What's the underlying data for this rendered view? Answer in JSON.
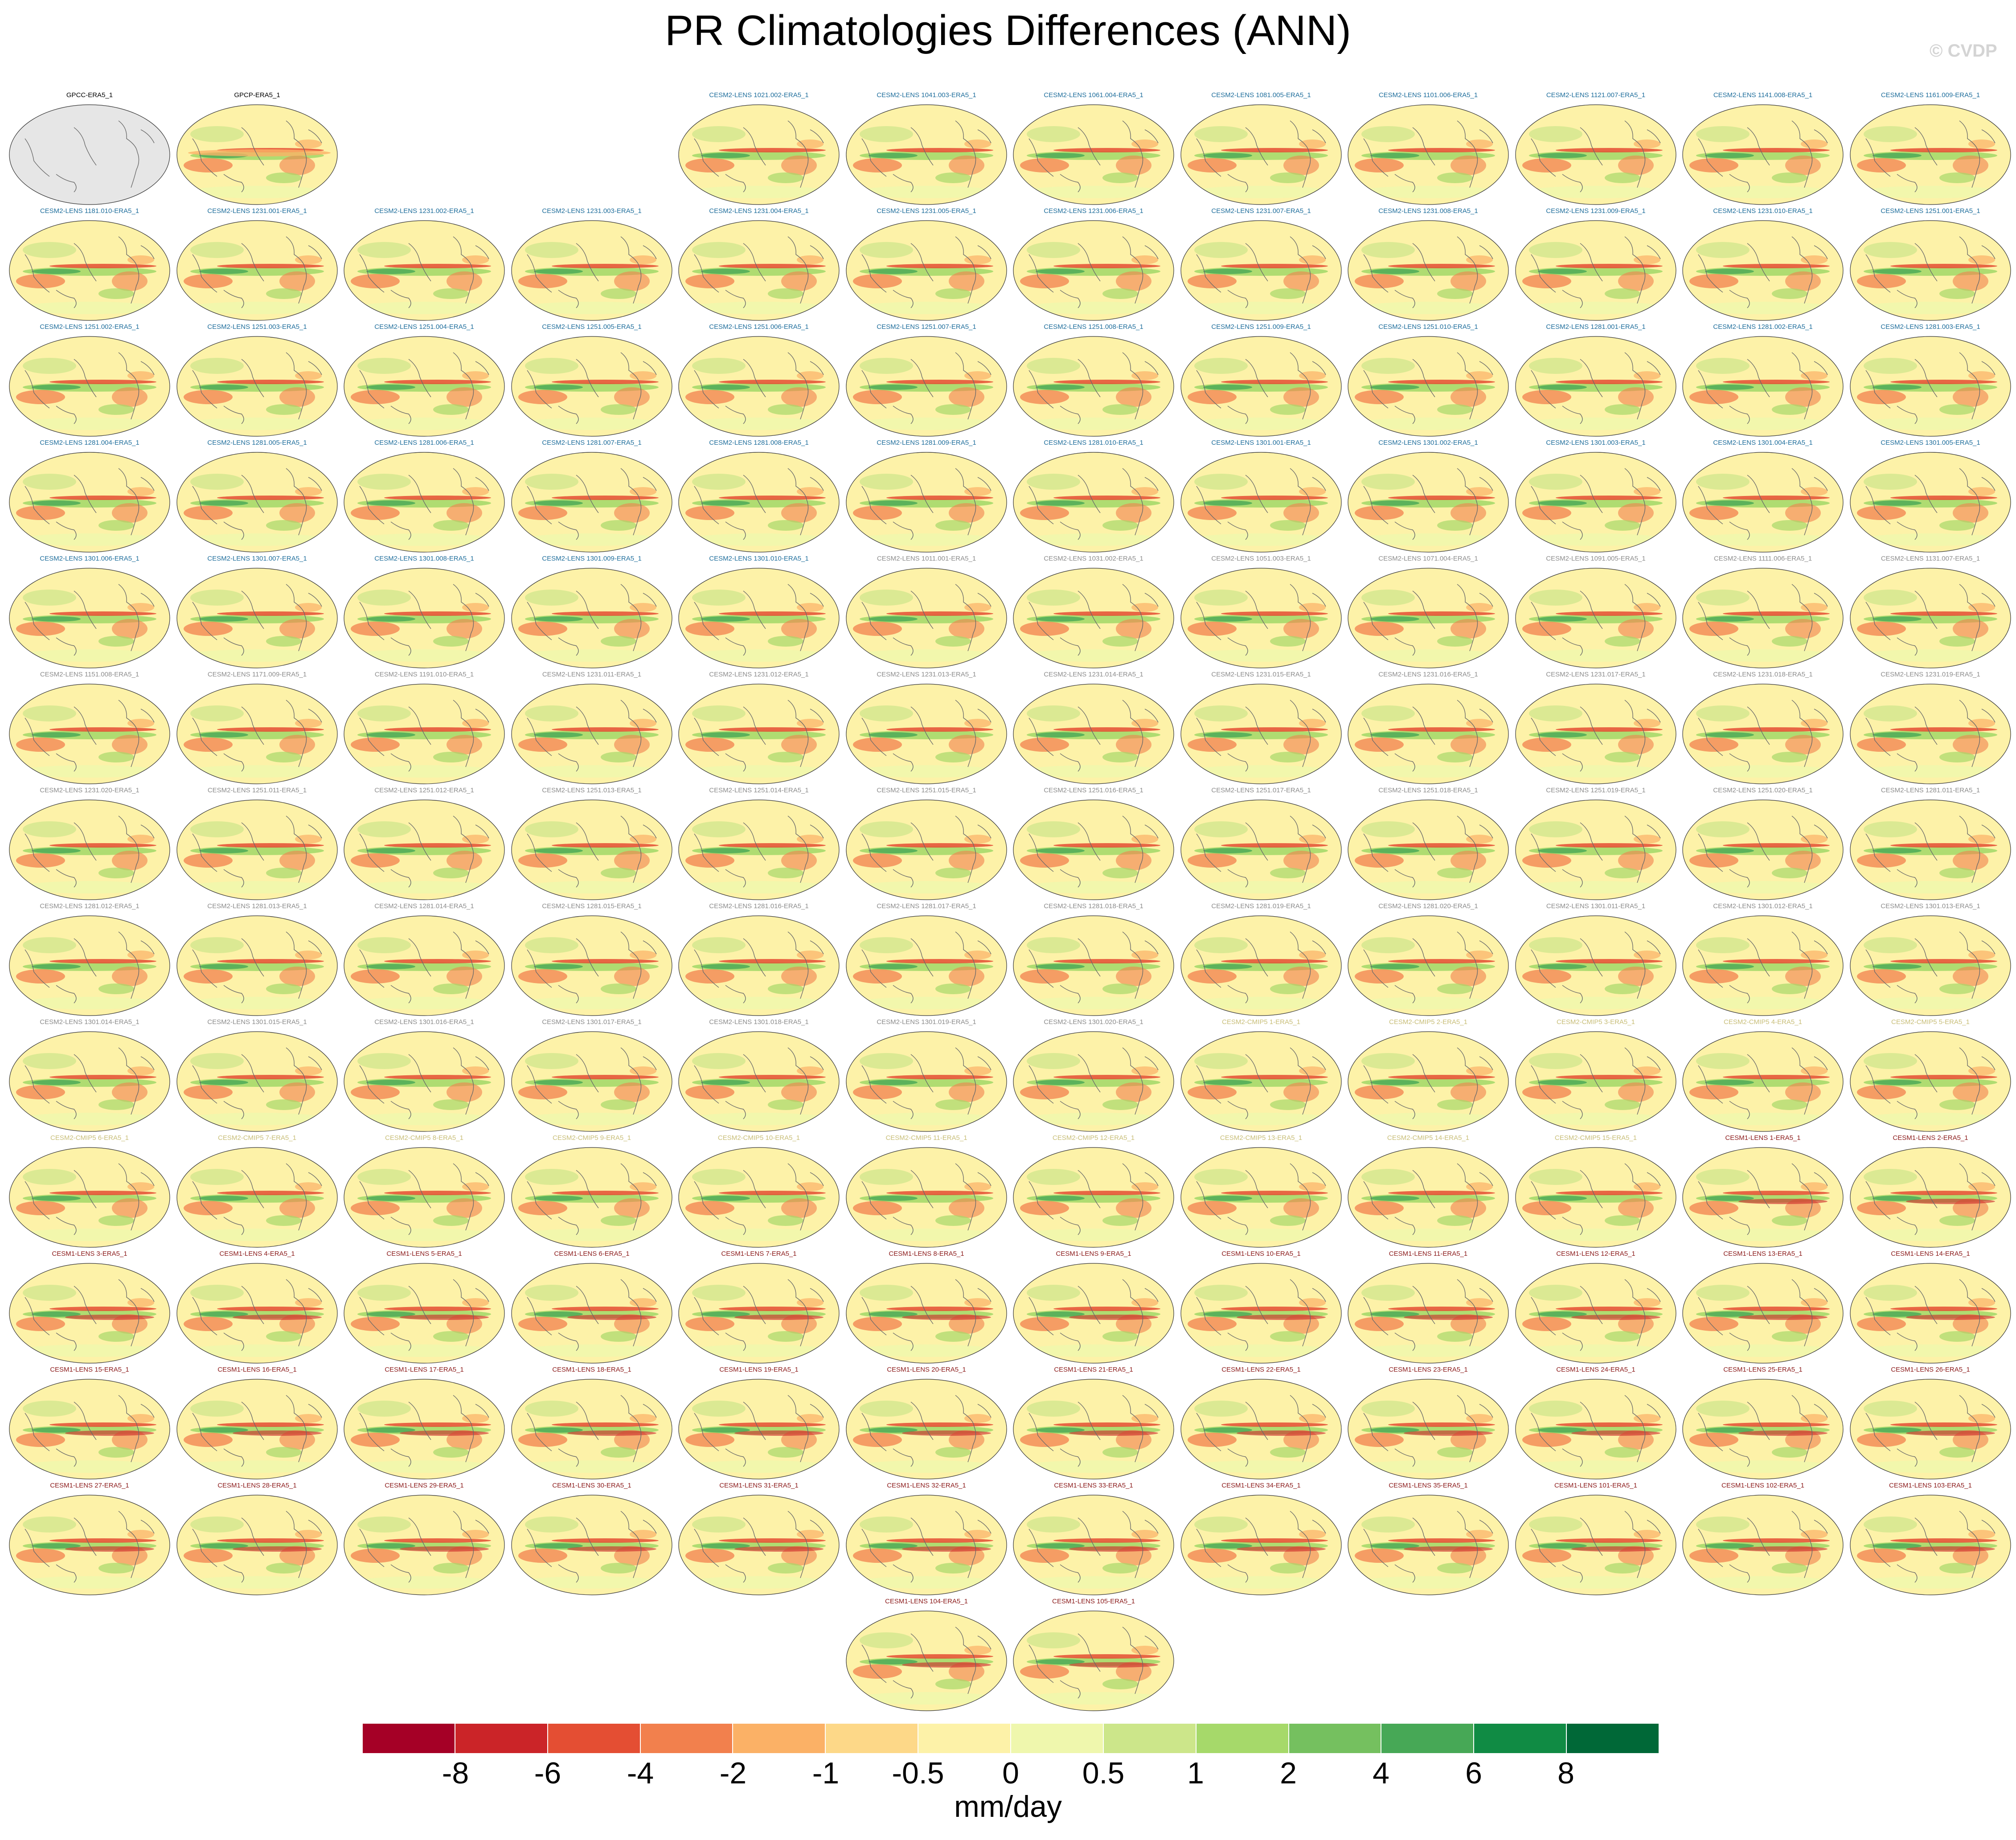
{
  "chart_data": {
    "type": "heatmap",
    "title": "PR Climatologies Differences (ANN)",
    "watermark": "© CVDP",
    "units": "mm/day",
    "colorbar": {
      "ticks": [
        "-8",
        "-6",
        "-4",
        "-2",
        "-1",
        "-0.5",
        "0",
        "0.5",
        "1",
        "2",
        "4",
        "6",
        "8"
      ],
      "colors": [
        "#a50026",
        "#cb2428",
        "#e44e33",
        "#f2804d",
        "#fbb166",
        "#fdd888",
        "#fdf2a8",
        "#eff7ad",
        "#cce68a",
        "#a6d96a",
        "#75c05f",
        "#47a856",
        "#108b44",
        "#006837"
      ]
    },
    "rows": [
      [
        {
          "t": "GPCC-ERA5_1",
          "k": "obs"
        },
        {
          "t": "GPCP-ERA5_1",
          "k": "obs"
        },
        null,
        null,
        {
          "t": "CESM2-LENS 1021.002-ERA5_1",
          "k": "c2"
        },
        {
          "t": "CESM2-LENS 1041.003-ERA5_1",
          "k": "c2"
        },
        {
          "t": "CESM2-LENS 1061.004-ERA5_1",
          "k": "c2"
        },
        {
          "t": "CESM2-LENS 1081.005-ERA5_1",
          "k": "c2"
        },
        {
          "t": "CESM2-LENS 1101.006-ERA5_1",
          "k": "c2"
        },
        {
          "t": "CESM2-LENS 1121.007-ERA5_1",
          "k": "c2"
        },
        {
          "t": "CESM2-LENS 1141.008-ERA5_1",
          "k": "c2"
        },
        {
          "t": "CESM2-LENS 1161.009-ERA5_1",
          "k": "c2"
        }
      ],
      [
        {
          "t": "CESM2-LENS 1181.010-ERA5_1",
          "k": "c2"
        },
        {
          "t": "CESM2-LENS 1231.001-ERA5_1",
          "k": "c2"
        },
        {
          "t": "CESM2-LENS 1231.002-ERA5_1",
          "k": "c2"
        },
        {
          "t": "CESM2-LENS 1231.003-ERA5_1",
          "k": "c2"
        },
        {
          "t": "CESM2-LENS 1231.004-ERA5_1",
          "k": "c2"
        },
        {
          "t": "CESM2-LENS 1231.005-ERA5_1",
          "k": "c2"
        },
        {
          "t": "CESM2-LENS 1231.006-ERA5_1",
          "k": "c2"
        },
        {
          "t": "CESM2-LENS 1231.007-ERA5_1",
          "k": "c2"
        },
        {
          "t": "CESM2-LENS 1231.008-ERA5_1",
          "k": "c2"
        },
        {
          "t": "CESM2-LENS 1231.009-ERA5_1",
          "k": "c2"
        },
        {
          "t": "CESM2-LENS 1231.010-ERA5_1",
          "k": "c2"
        },
        {
          "t": "CESM2-LENS 1251.001-ERA5_1",
          "k": "c2"
        }
      ],
      [
        {
          "t": "CESM2-LENS 1251.002-ERA5_1",
          "k": "c2"
        },
        {
          "t": "CESM2-LENS 1251.003-ERA5_1",
          "k": "c2"
        },
        {
          "t": "CESM2-LENS 1251.004-ERA5_1",
          "k": "c2"
        },
        {
          "t": "CESM2-LENS 1251.005-ERA5_1",
          "k": "c2"
        },
        {
          "t": "CESM2-LENS 1251.006-ERA5_1",
          "k": "c2"
        },
        {
          "t": "CESM2-LENS 1251.007-ERA5_1",
          "k": "c2"
        },
        {
          "t": "CESM2-LENS 1251.008-ERA5_1",
          "k": "c2"
        },
        {
          "t": "CESM2-LENS 1251.009-ERA5_1",
          "k": "c2"
        },
        {
          "t": "CESM2-LENS 1251.010-ERA5_1",
          "k": "c2"
        },
        {
          "t": "CESM2-LENS 1281.001-ERA5_1",
          "k": "c2"
        },
        {
          "t": "CESM2-LENS 1281.002-ERA5_1",
          "k": "c2"
        },
        {
          "t": "CESM2-LENS 1281.003-ERA5_1",
          "k": "c2"
        }
      ],
      [
        {
          "t": "CESM2-LENS 1281.004-ERA5_1",
          "k": "c2"
        },
        {
          "t": "CESM2-LENS 1281.005-ERA5_1",
          "k": "c2"
        },
        {
          "t": "CESM2-LENS 1281.006-ERA5_1",
          "k": "c2"
        },
        {
          "t": "CESM2-LENS 1281.007-ERA5_1",
          "k": "c2"
        },
        {
          "t": "CESM2-LENS 1281.008-ERA5_1",
          "k": "c2"
        },
        {
          "t": "CESM2-LENS 1281.009-ERA5_1",
          "k": "c2"
        },
        {
          "t": "CESM2-LENS 1281.010-ERA5_1",
          "k": "c2"
        },
        {
          "t": "CESM2-LENS 1301.001-ERA5_1",
          "k": "c2"
        },
        {
          "t": "CESM2-LENS 1301.002-ERA5_1",
          "k": "c2"
        },
        {
          "t": "CESM2-LENS 1301.003-ERA5_1",
          "k": "c2"
        },
        {
          "t": "CESM2-LENS 1301.004-ERA5_1",
          "k": "c2"
        },
        {
          "t": "CESM2-LENS 1301.005-ERA5_1",
          "k": "c2"
        }
      ],
      [
        {
          "t": "CESM2-LENS 1301.006-ERA5_1",
          "k": "c2"
        },
        {
          "t": "CESM2-LENS 1301.007-ERA5_1",
          "k": "c2"
        },
        {
          "t": "CESM2-LENS 1301.008-ERA5_1",
          "k": "c2"
        },
        {
          "t": "CESM2-LENS 1301.009-ERA5_1",
          "k": "c2"
        },
        {
          "t": "CESM2-LENS 1301.010-ERA5_1",
          "k": "c2"
        },
        {
          "t": "CESM2-LENS 1011.001-ERA5_1",
          "k": "c2g"
        },
        {
          "t": "CESM2-LENS 1031.002-ERA5_1",
          "k": "c2g"
        },
        {
          "t": "CESM2-LENS 1051.003-ERA5_1",
          "k": "c2g"
        },
        {
          "t": "CESM2-LENS 1071.004-ERA5_1",
          "k": "c2g"
        },
        {
          "t": "CESM2-LENS 1091.005-ERA5_1",
          "k": "c2g"
        },
        {
          "t": "CESM2-LENS 1111.006-ERA5_1",
          "k": "c2g"
        },
        {
          "t": "CESM2-LENS 1131.007-ERA5_1",
          "k": "c2g"
        }
      ],
      [
        {
          "t": "CESM2-LENS 1151.008-ERA5_1",
          "k": "c2g"
        },
        {
          "t": "CESM2-LENS 1171.009-ERA5_1",
          "k": "c2g"
        },
        {
          "t": "CESM2-LENS 1191.010-ERA5_1",
          "k": "c2g"
        },
        {
          "t": "CESM2-LENS 1231.011-ERA5_1",
          "k": "c2g"
        },
        {
          "t": "CESM2-LENS 1231.012-ERA5_1",
          "k": "c2g"
        },
        {
          "t": "CESM2-LENS 1231.013-ERA5_1",
          "k": "c2g"
        },
        {
          "t": "CESM2-LENS 1231.014-ERA5_1",
          "k": "c2g"
        },
        {
          "t": "CESM2-LENS 1231.015-ERA5_1",
          "k": "c2g"
        },
        {
          "t": "CESM2-LENS 1231.016-ERA5_1",
          "k": "c2g"
        },
        {
          "t": "CESM2-LENS 1231.017-ERA5_1",
          "k": "c2g"
        },
        {
          "t": "CESM2-LENS 1231.018-ERA5_1",
          "k": "c2g"
        },
        {
          "t": "CESM2-LENS 1231.019-ERA5_1",
          "k": "c2g"
        }
      ],
      [
        {
          "t": "CESM2-LENS 1231.020-ERA5_1",
          "k": "c2g"
        },
        {
          "t": "CESM2-LENS 1251.011-ERA5_1",
          "k": "c2g"
        },
        {
          "t": "CESM2-LENS 1251.012-ERA5_1",
          "k": "c2g"
        },
        {
          "t": "CESM2-LENS 1251.013-ERA5_1",
          "k": "c2g"
        },
        {
          "t": "CESM2-LENS 1251.014-ERA5_1",
          "k": "c2g"
        },
        {
          "t": "CESM2-LENS 1251.015-ERA5_1",
          "k": "c2g"
        },
        {
          "t": "CESM2-LENS 1251.016-ERA5_1",
          "k": "c2g"
        },
        {
          "t": "CESM2-LENS 1251.017-ERA5_1",
          "k": "c2g"
        },
        {
          "t": "CESM2-LENS 1251.018-ERA5_1",
          "k": "c2g"
        },
        {
          "t": "CESM2-LENS 1251.019-ERA5_1",
          "k": "c2g"
        },
        {
          "t": "CESM2-LENS 1251.020-ERA5_1",
          "k": "c2g"
        },
        {
          "t": "CESM2-LENS 1281.011-ERA5_1",
          "k": "c2g"
        }
      ],
      [
        {
          "t": "CESM2-LENS 1281.012-ERA5_1",
          "k": "c2g"
        },
        {
          "t": "CESM2-LENS 1281.013-ERA5_1",
          "k": "c2g"
        },
        {
          "t": "CESM2-LENS 1281.014-ERA5_1",
          "k": "c2g"
        },
        {
          "t": "CESM2-LENS 1281.015-ERA5_1",
          "k": "c2g"
        },
        {
          "t": "CESM2-LENS 1281.016-ERA5_1",
          "k": "c2g"
        },
        {
          "t": "CESM2-LENS 1281.017-ERA5_1",
          "k": "c2g"
        },
        {
          "t": "CESM2-LENS 1281.018-ERA5_1",
          "k": "c2g"
        },
        {
          "t": "CESM2-LENS 1281.019-ERA5_1",
          "k": "c2g"
        },
        {
          "t": "CESM2-LENS 1281.020-ERA5_1",
          "k": "c2g"
        },
        {
          "t": "CESM2-LENS 1301.011-ERA5_1",
          "k": "c2g"
        },
        {
          "t": "CESM2-LENS 1301.012-ERA5_1",
          "k": "c2g"
        },
        {
          "t": "CESM2-LENS 1301.013-ERA5_1",
          "k": "c2g"
        }
      ],
      [
        {
          "t": "CESM2-LENS 1301.014-ERA5_1",
          "k": "c2g"
        },
        {
          "t": "CESM2-LENS 1301.015-ERA5_1",
          "k": "c2g"
        },
        {
          "t": "CESM2-LENS 1301.016-ERA5_1",
          "k": "c2g"
        },
        {
          "t": "CESM2-LENS 1301.017-ERA5_1",
          "k": "c2g"
        },
        {
          "t": "CESM2-LENS 1301.018-ERA5_1",
          "k": "c2g"
        },
        {
          "t": "CESM2-LENS 1301.019-ERA5_1",
          "k": "c2g"
        },
        {
          "t": "CESM2-LENS 1301.020-ERA5_1",
          "k": "c2g"
        },
        {
          "t": "CESM2-CMIP5 1-ERA5_1",
          "k": "cm"
        },
        {
          "t": "CESM2-CMIP5 2-ERA5_1",
          "k": "cm"
        },
        {
          "t": "CESM2-CMIP5 3-ERA5_1",
          "k": "cm"
        },
        {
          "t": "CESM2-CMIP5 4-ERA5_1",
          "k": "cm"
        },
        {
          "t": "CESM2-CMIP5 5-ERA5_1",
          "k": "cm"
        }
      ],
      [
        {
          "t": "CESM2-CMIP5 6-ERA5_1",
          "k": "cm"
        },
        {
          "t": "CESM2-CMIP5 7-ERA5_1",
          "k": "cm"
        },
        {
          "t": "CESM2-CMIP5 8-ERA5_1",
          "k": "cm"
        },
        {
          "t": "CESM2-CMIP5 9-ERA5_1",
          "k": "cm"
        },
        {
          "t": "CESM2-CMIP5 10-ERA5_1",
          "k": "cm"
        },
        {
          "t": "CESM2-CMIP5 11-ERA5_1",
          "k": "cm"
        },
        {
          "t": "CESM2-CMIP5 12-ERA5_1",
          "k": "cm"
        },
        {
          "t": "CESM2-CMIP5 13-ERA5_1",
          "k": "cm"
        },
        {
          "t": "CESM2-CMIP5 14-ERA5_1",
          "k": "cm"
        },
        {
          "t": "CESM2-CMIP5 15-ERA5_1",
          "k": "cm"
        },
        {
          "t": "CESM1-LENS 1-ERA5_1",
          "k": "c1"
        },
        {
          "t": "CESM1-LENS 2-ERA5_1",
          "k": "c1"
        }
      ],
      [
        {
          "t": "CESM1-LENS 3-ERA5_1",
          "k": "c1"
        },
        {
          "t": "CESM1-LENS 4-ERA5_1",
          "k": "c1"
        },
        {
          "t": "CESM1-LENS 5-ERA5_1",
          "k": "c1"
        },
        {
          "t": "CESM1-LENS 6-ERA5_1",
          "k": "c1"
        },
        {
          "t": "CESM1-LENS 7-ERA5_1",
          "k": "c1"
        },
        {
          "t": "CESM1-LENS 8-ERA5_1",
          "k": "c1"
        },
        {
          "t": "CESM1-LENS 9-ERA5_1",
          "k": "c1"
        },
        {
          "t": "CESM1-LENS 10-ERA5_1",
          "k": "c1"
        },
        {
          "t": "CESM1-LENS 11-ERA5_1",
          "k": "c1"
        },
        {
          "t": "CESM1-LENS 12-ERA5_1",
          "k": "c1"
        },
        {
          "t": "CESM1-LENS 13-ERA5_1",
          "k": "c1"
        },
        {
          "t": "CESM1-LENS 14-ERA5_1",
          "k": "c1"
        }
      ],
      [
        {
          "t": "CESM1-LENS 15-ERA5_1",
          "k": "c1"
        },
        {
          "t": "CESM1-LENS 16-ERA5_1",
          "k": "c1"
        },
        {
          "t": "CESM1-LENS 17-ERA5_1",
          "k": "c1"
        },
        {
          "t": "CESM1-LENS 18-ERA5_1",
          "k": "c1"
        },
        {
          "t": "CESM1-LENS 19-ERA5_1",
          "k": "c1"
        },
        {
          "t": "CESM1-LENS 20-ERA5_1",
          "k": "c1"
        },
        {
          "t": "CESM1-LENS 21-ERA5_1",
          "k": "c1"
        },
        {
          "t": "CESM1-LENS 22-ERA5_1",
          "k": "c1"
        },
        {
          "t": "CESM1-LENS 23-ERA5_1",
          "k": "c1"
        },
        {
          "t": "CESM1-LENS 24-ERA5_1",
          "k": "c1"
        },
        {
          "t": "CESM1-LENS 25-ERA5_1",
          "k": "c1"
        },
        {
          "t": "CESM1-LENS 26-ERA5_1",
          "k": "c1"
        }
      ],
      [
        {
          "t": "CESM1-LENS 27-ERA5_1",
          "k": "c1"
        },
        {
          "t": "CESM1-LENS 28-ERA5_1",
          "k": "c1"
        },
        {
          "t": "CESM1-LENS 29-ERA5_1",
          "k": "c1"
        },
        {
          "t": "CESM1-LENS 30-ERA5_1",
          "k": "c1"
        },
        {
          "t": "CESM1-LENS 31-ERA5_1",
          "k": "c1"
        },
        {
          "t": "CESM1-LENS 32-ERA5_1",
          "k": "c1"
        },
        {
          "t": "CESM1-LENS 33-ERA5_1",
          "k": "c1"
        },
        {
          "t": "CESM1-LENS 34-ERA5_1",
          "k": "c1"
        },
        {
          "t": "CESM1-LENS 35-ERA5_1",
          "k": "c1"
        },
        {
          "t": "CESM1-LENS 101-ERA5_1",
          "k": "c1"
        },
        {
          "t": "CESM1-LENS 102-ERA5_1",
          "k": "c1"
        },
        {
          "t": "CESM1-LENS 103-ERA5_1",
          "k": "c1"
        }
      ],
      [
        null,
        null,
        null,
        null,
        null,
        {
          "t": "CESM1-LENS 104-ERA5_1",
          "k": "c1"
        },
        {
          "t": "CESM1-LENS 105-ERA5_1",
          "k": "c1"
        },
        null,
        null,
        null,
        null,
        null
      ]
    ],
    "title_colors": {
      "obs": "#000000",
      "c2": "#1f6e9c",
      "c2g": "#8c8c8c",
      "cm": "#c8be78",
      "c1": "#8b1a1a"
    }
  }
}
